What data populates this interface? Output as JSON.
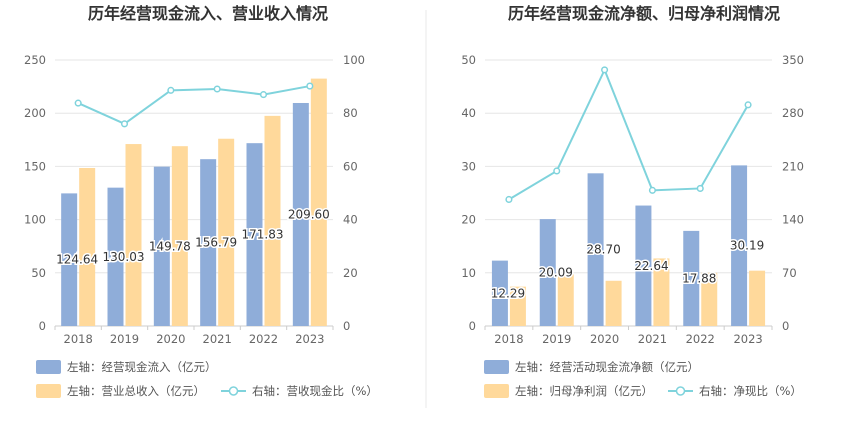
{
  "colors": {
    "bar_primary": "#8fadd9",
    "bar_secondary": "#ffd99b",
    "line": "#7fd3dc",
    "grid": "#e6e6e6",
    "axis": "#cccccc",
    "divider": "#e8e8e8"
  },
  "chart_data": [
    {
      "type": "bar",
      "title": "历年经营现金流入、营业收入情况",
      "categories": [
        "2018",
        "2019",
        "2020",
        "2021",
        "2022",
        "2023"
      ],
      "left_axis": {
        "min": 0,
        "max": 250,
        "ticks": [
          0,
          50,
          100,
          150,
          200,
          250
        ]
      },
      "right_axis": {
        "min": 0,
        "max": 100,
        "ticks": [
          0,
          20,
          40,
          60,
          80,
          100
        ]
      },
      "series": [
        {
          "name": "左轴：经营现金流入（亿元）",
          "type": "bar",
          "axis": "left",
          "values": [
            124.64,
            130.03,
            149.78,
            156.79,
            171.83,
            209.6
          ],
          "labels": [
            "124.64",
            "130.03",
            "149.78",
            "156.79",
            "171.83",
            "209.60"
          ]
        },
        {
          "name": "左轴：营业总收入（亿元）",
          "type": "bar",
          "axis": "left",
          "values": [
            148.5,
            171.0,
            169.0,
            176.0,
            197.5,
            232.5
          ]
        },
        {
          "name": "右轴：营收现金比（%）",
          "type": "line",
          "axis": "right",
          "values": [
            83.8,
            76.0,
            88.6,
            89.1,
            87.0,
            90.2
          ]
        }
      ]
    },
    {
      "type": "bar",
      "title": "历年经营现金流净额、归母净利润情况",
      "categories": [
        "2018",
        "2019",
        "2020",
        "2021",
        "2022",
        "2023"
      ],
      "left_axis": {
        "min": 0,
        "max": 50,
        "ticks": [
          0,
          10,
          20,
          30,
          40,
          50
        ]
      },
      "right_axis": {
        "min": 0,
        "max": 350,
        "ticks": [
          0,
          70,
          140,
          210,
          280,
          350
        ]
      },
      "series": [
        {
          "name": "左轴：经营活动现金流净额（亿元）",
          "type": "bar",
          "axis": "left",
          "values": [
            12.29,
            20.09,
            28.7,
            22.64,
            17.88,
            30.19
          ],
          "labels": [
            "12.29",
            "20.09",
            "28.70",
            "22.64",
            "17.88",
            "30.19"
          ]
        },
        {
          "name": "左轴：归母净利润（亿元）",
          "type": "bar",
          "axis": "left",
          "values": [
            7.4,
            9.7,
            8.5,
            12.7,
            10.0,
            10.4
          ]
        },
        {
          "name": "右轴：净现比（%）",
          "type": "line",
          "axis": "right",
          "values": [
            166.5,
            204.0,
            337.0,
            178.5,
            181.0,
            291.0
          ]
        }
      ]
    }
  ]
}
